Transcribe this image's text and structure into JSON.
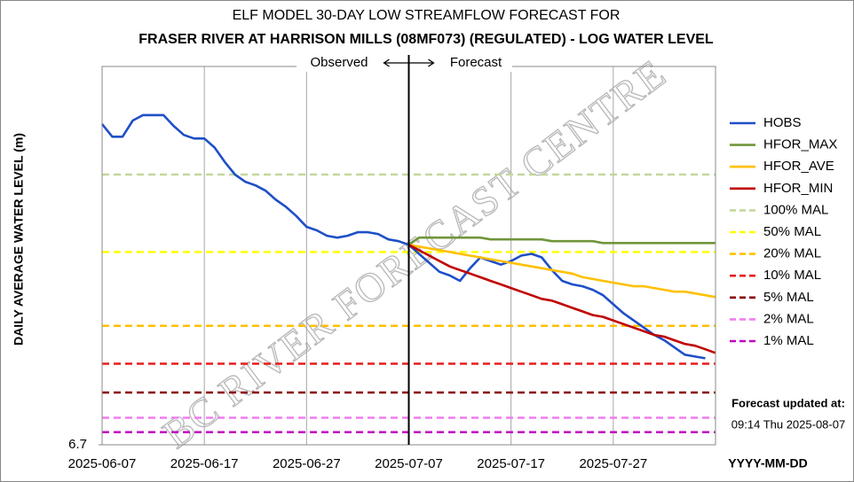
{
  "chart_data": {
    "type": "line",
    "title": "ELF MODEL 30-DAY LOW STREAMFLOW FORECAST FOR",
    "subtitle": "FRASER RIVER AT HARRISON MILLS (08MF073) (REGULATED)  - LOG WATER LEVEL",
    "y_label": "DAILY AVERAGE WATER LEVEL (m)",
    "x_label": "YYYY-MM-DD",
    "annotations": {
      "observed": "Observed",
      "forecast": "Forecast",
      "updated_title": "Forecast updated at:",
      "updated_time": "09:14 Thu 2025-08-07",
      "watermark": "BC RIVER FORECAST CENTRE"
    },
    "forecast_start": "2025-07-07",
    "xlim": [
      "2025-06-07",
      "2025-08-06"
    ],
    "xticks": [
      "2025-06-07",
      "2025-06-17",
      "2025-06-27",
      "2025-07-07",
      "2025-07-17",
      "2025-07-27"
    ],
    "ylim": [
      6.7,
      8.8
    ],
    "yticks": [
      6.7
    ],
    "grid": "x",
    "x": [
      "2025-06-07",
      "2025-06-08",
      "2025-06-09",
      "2025-06-10",
      "2025-06-11",
      "2025-06-12",
      "2025-06-13",
      "2025-06-14",
      "2025-06-15",
      "2025-06-16",
      "2025-06-17",
      "2025-06-18",
      "2025-06-19",
      "2025-06-20",
      "2025-06-21",
      "2025-06-22",
      "2025-06-23",
      "2025-06-24",
      "2025-06-25",
      "2025-06-26",
      "2025-06-27",
      "2025-06-28",
      "2025-06-29",
      "2025-06-30",
      "2025-07-01",
      "2025-07-02",
      "2025-07-03",
      "2025-07-04",
      "2025-07-05",
      "2025-07-06",
      "2025-07-07",
      "2025-07-08",
      "2025-07-09",
      "2025-07-10",
      "2025-07-11",
      "2025-07-12",
      "2025-07-13",
      "2025-07-14",
      "2025-07-15",
      "2025-07-16",
      "2025-07-17",
      "2025-07-18",
      "2025-07-19",
      "2025-07-20",
      "2025-07-21",
      "2025-07-22",
      "2025-07-23",
      "2025-07-24",
      "2025-07-25",
      "2025-07-26",
      "2025-07-27",
      "2025-07-28",
      "2025-07-29",
      "2025-07-30",
      "2025-07-31",
      "2025-08-01",
      "2025-08-02",
      "2025-08-03",
      "2025-08-04",
      "2025-08-05",
      "2025-08-06"
    ],
    "series": [
      {
        "name": "HOBS",
        "color": "#1f4fc8",
        "values": [
          8.48,
          8.41,
          8.41,
          8.5,
          8.53,
          8.53,
          8.53,
          8.47,
          8.42,
          8.4,
          8.4,
          8.35,
          8.27,
          8.2,
          8.16,
          8.14,
          8.11,
          8.06,
          8.02,
          7.97,
          7.91,
          7.89,
          7.86,
          7.85,
          7.86,
          7.88,
          7.88,
          7.87,
          7.84,
          7.83,
          7.81,
          7.76,
          7.71,
          7.66,
          7.64,
          7.61,
          7.68,
          7.74,
          7.72,
          7.7,
          7.72,
          7.75,
          7.76,
          7.74,
          7.67,
          7.61,
          7.59,
          7.58,
          7.56,
          7.53,
          7.48,
          7.43,
          7.39,
          7.35,
          7.31,
          7.28,
          7.24,
          7.2,
          7.19,
          7.18,
          null
        ]
      },
      {
        "name": "HFOR_MAX",
        "color": "#70963a",
        "values": [
          null,
          null,
          null,
          null,
          null,
          null,
          null,
          null,
          null,
          null,
          null,
          null,
          null,
          null,
          null,
          null,
          null,
          null,
          null,
          null,
          null,
          null,
          null,
          null,
          null,
          null,
          null,
          null,
          null,
          null,
          7.81,
          7.85,
          7.85,
          7.85,
          7.85,
          7.85,
          7.85,
          7.85,
          7.84,
          7.84,
          7.84,
          7.84,
          7.84,
          7.84,
          7.83,
          7.83,
          7.83,
          7.83,
          7.83,
          7.82,
          7.82,
          7.82,
          7.82,
          7.82,
          7.82,
          7.82,
          7.82,
          7.82,
          7.82,
          7.82,
          7.82
        ]
      },
      {
        "name": "HFOR_AVE",
        "color": "#ffc000",
        "values": [
          null,
          null,
          null,
          null,
          null,
          null,
          null,
          null,
          null,
          null,
          null,
          null,
          null,
          null,
          null,
          null,
          null,
          null,
          null,
          null,
          null,
          null,
          null,
          null,
          null,
          null,
          null,
          null,
          null,
          null,
          7.81,
          7.8,
          7.79,
          7.78,
          7.77,
          7.76,
          7.75,
          7.74,
          7.73,
          7.72,
          7.71,
          7.7,
          7.69,
          7.68,
          7.67,
          7.66,
          7.65,
          7.63,
          7.62,
          7.61,
          7.6,
          7.59,
          7.58,
          7.58,
          7.57,
          7.56,
          7.55,
          7.55,
          7.54,
          7.53,
          7.52
        ]
      },
      {
        "name": "HFOR_MIN",
        "color": "#c00000",
        "values": [
          null,
          null,
          null,
          null,
          null,
          null,
          null,
          null,
          null,
          null,
          null,
          null,
          null,
          null,
          null,
          null,
          null,
          null,
          null,
          null,
          null,
          null,
          null,
          null,
          null,
          null,
          null,
          null,
          null,
          null,
          7.81,
          7.78,
          7.75,
          7.72,
          7.69,
          7.67,
          7.65,
          7.63,
          7.61,
          7.59,
          7.57,
          7.55,
          7.53,
          7.51,
          7.5,
          7.48,
          7.46,
          7.44,
          7.42,
          7.41,
          7.39,
          7.37,
          7.35,
          7.33,
          7.31,
          7.3,
          7.28,
          7.26,
          7.25,
          7.23,
          7.21
        ]
      }
    ],
    "hlines": [
      {
        "name": "100% MAL",
        "color": "#c4d79b",
        "value": 8.2
      },
      {
        "name": "50% MAL",
        "color": "#ffff00",
        "value": 7.77
      },
      {
        "name": "20% MAL",
        "color": "#ffc000",
        "value": 7.36
      },
      {
        "name": "10% MAL",
        "color": "#e81c1c",
        "value": 7.15
      },
      {
        "name": "5% MAL",
        "color": "#8b0000",
        "value": 6.99
      },
      {
        "name": "2% MAL",
        "color": "#f07cf0",
        "value": 6.85
      },
      {
        "name": "1% MAL",
        "color": "#c000c0",
        "value": 6.77
      }
    ]
  }
}
